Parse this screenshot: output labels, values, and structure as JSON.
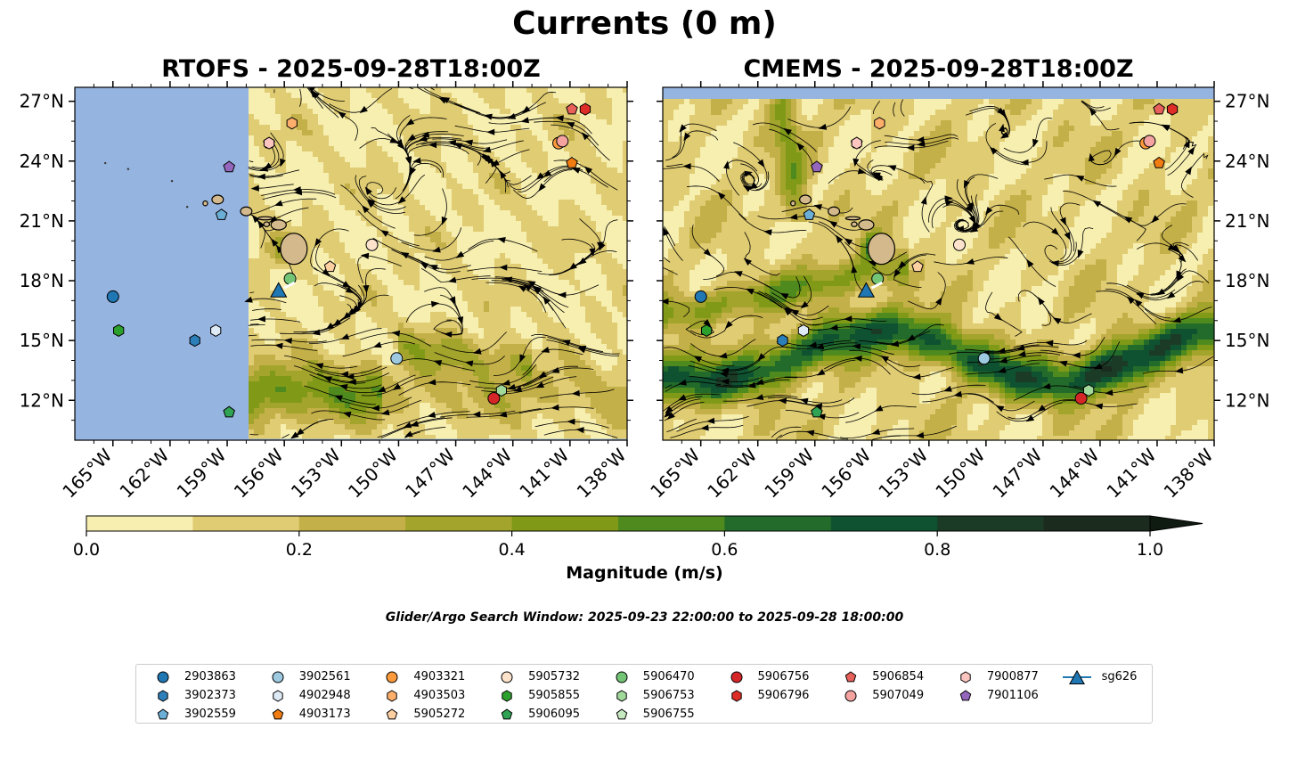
{
  "figure": {
    "title": "Currents (0 m)",
    "window_text": "Glider/Argo Search Window: 2025-09-23 22:00:00 to 2025-09-28 18:00:00"
  },
  "chart_data": [
    {
      "type": "map",
      "title": "RTOFS - 2025-09-28T18:00Z",
      "xlabel": "",
      "ylabel": "",
      "xlim": [
        -167,
        -138
      ],
      "ylim": [
        10,
        27.7
      ],
      "lon_ticks": [
        -165,
        -162,
        -159,
        -156,
        -153,
        -150,
        -147,
        -144,
        -141,
        -138
      ],
      "lon_tick_labels": [
        "165°W",
        "162°W",
        "159°W",
        "156°W",
        "153°W",
        "150°W",
        "147°W",
        "144°W",
        "141°W",
        "138°W"
      ],
      "lat_ticks": [
        12,
        15,
        18,
        21,
        24,
        27
      ],
      "lat_tick_labels": [
        "12°N",
        "15°N",
        "18°N",
        "21°N",
        "24°N",
        "27°N"
      ],
      "model_west_limit_lon": -157.9,
      "model_south_limit_lat": 10.1
    },
    {
      "type": "map",
      "title": "CMEMS - 2025-09-28T18:00Z",
      "xlabel": "",
      "ylabel": "",
      "xlim": [
        -167,
        -138
      ],
      "ylim": [
        10,
        27.7
      ],
      "lon_ticks": [
        -165,
        -162,
        -159,
        -156,
        -153,
        -150,
        -147,
        -144,
        -141,
        -138
      ],
      "lon_tick_labels": [
        "165°W",
        "162°W",
        "159°W",
        "156°W",
        "153°W",
        "150°W",
        "147°W",
        "144°W",
        "141°W",
        "138°W"
      ],
      "lat_ticks": [
        12,
        15,
        18,
        21,
        24,
        27
      ],
      "lat_tick_labels": [
        "12°N",
        "15°N",
        "18°N",
        "21°N",
        "24°N",
        "27°N"
      ],
      "model_north_limit_lat": 27.1
    }
  ],
  "colorbar": {
    "label": "Magnitude (m/s)",
    "min": 0.0,
    "max": 1.0,
    "extend": "max",
    "ticks": [
      0.0,
      0.2,
      0.4,
      0.6,
      0.8,
      1.0
    ],
    "tick_labels": [
      "0.0",
      "0.2",
      "0.4",
      "0.6",
      "0.8",
      "1.0"
    ],
    "colors": [
      "#f7efb0",
      "#e0cc72",
      "#c4b048",
      "#a3a42c",
      "#809a18",
      "#4f8a1e",
      "#226b2a",
      "#0f5231",
      "#1c3b26",
      "#1b2b1e"
    ],
    "extend_color": "#0f1a10"
  },
  "colors": {
    "land": "#d4b98c",
    "ocean_mask": "#96b4e0",
    "streamline": "#000000"
  },
  "hawaii_islands": [
    {
      "name": "Kauai",
      "lon": -159.5,
      "lat": 22.07,
      "rlon": 0.3,
      "rlat": 0.22
    },
    {
      "name": "Niihau",
      "lon": -160.15,
      "lat": 21.88,
      "rlon": 0.12,
      "rlat": 0.12
    },
    {
      "name": "Oahu",
      "lon": -158.0,
      "lat": 21.48,
      "rlon": 0.3,
      "rlat": 0.22
    },
    {
      "name": "Molokai",
      "lon": -157.0,
      "lat": 21.13,
      "rlon": 0.38,
      "rlat": 0.08
    },
    {
      "name": "Lanai",
      "lon": -156.93,
      "lat": 20.83,
      "rlon": 0.15,
      "rlat": 0.12
    },
    {
      "name": "Maui",
      "lon": -156.3,
      "lat": 20.8,
      "rlon": 0.4,
      "rlat": 0.25
    },
    {
      "name": "Hawaii",
      "lon": -155.5,
      "lat": 19.6,
      "rlon": 0.7,
      "rlat": 0.78
    }
  ],
  "platforms": [
    {
      "id": "2903863",
      "marker": "circle",
      "color": "#1f77b4",
      "lon": -165.0,
      "lat": 17.2
    },
    {
      "id": "3902373",
      "marker": "hexagon",
      "color": "#2c7fb8",
      "lon": -160.7,
      "lat": 15.0
    },
    {
      "id": "3902559",
      "marker": "pentagon",
      "color": "#6baed6",
      "lon": -159.3,
      "lat": 21.3
    },
    {
      "id": "3902561",
      "marker": "circle",
      "color": "#9ecae1",
      "lon": -150.1,
      "lat": 14.1
    },
    {
      "id": "4902948",
      "marker": "hexagon",
      "color": "#deebf7",
      "lon": -159.6,
      "lat": 15.5
    },
    {
      "id": "4903173",
      "marker": "pentagon",
      "color": "#f07c12",
      "lon": -140.9,
      "lat": 23.9
    },
    {
      "id": "4903321",
      "marker": "circle",
      "color": "#fd9a3c",
      "lon": -141.6,
      "lat": 24.9
    },
    {
      "id": "4903503",
      "marker": "hexagon",
      "color": "#fdae6b",
      "lon": -155.6,
      "lat": 25.9
    },
    {
      "id": "5905272",
      "marker": "pentagon",
      "color": "#fdd0a2",
      "lon": -153.6,
      "lat": 18.7
    },
    {
      "id": "5905732",
      "marker": "circle",
      "color": "#fde3cc",
      "lon": -151.4,
      "lat": 19.8
    },
    {
      "id": "5905855",
      "marker": "hexagon",
      "color": "#2ca02c",
      "lon": -164.7,
      "lat": 15.5
    },
    {
      "id": "5906095",
      "marker": "pentagon",
      "color": "#31a354",
      "lon": -158.9,
      "lat": 11.4
    },
    {
      "id": "5906470",
      "marker": "circle",
      "color": "#74c476",
      "lon": -155.7,
      "lat": 18.1
    },
    {
      "id": "5906753",
      "marker": "hexagon",
      "color": "#a1d99b",
      "lon": -144.6,
      "lat": 12.5
    },
    {
      "id": "5906755",
      "marker": "pentagon",
      "color": "#c7e9c0",
      "lon": -156.8,
      "lat": 24.9
    },
    {
      "id": "5906756",
      "marker": "circle",
      "color": "#d62728",
      "lon": -145.0,
      "lat": 12.1
    },
    {
      "id": "5906796",
      "marker": "hexagon",
      "color": "#de2d26",
      "lon": -140.2,
      "lat": 26.6
    },
    {
      "id": "5906854",
      "marker": "pentagon",
      "color": "#e8605a",
      "lon": -140.9,
      "lat": 26.6
    },
    {
      "id": "5907049",
      "marker": "circle",
      "color": "#f4a3a0",
      "lon": -141.4,
      "lat": 25.0
    },
    {
      "id": "7900877",
      "marker": "hexagon",
      "color": "#fcc5c0",
      "lon": -156.8,
      "lat": 24.9
    },
    {
      "id": "7901106",
      "marker": "pentagon",
      "color": "#9467bd",
      "lon": -158.9,
      "lat": 23.7
    },
    {
      "id": "sg626",
      "marker": "triangle",
      "color": "#1f77b4",
      "lon": -156.3,
      "lat": 17.5
    }
  ],
  "legend_entries": [
    {
      "id": "2903863",
      "marker": "circle",
      "color": "#1f77b4"
    },
    {
      "id": "3902373",
      "marker": "hexagon",
      "color": "#2c7fb8"
    },
    {
      "id": "3902559",
      "marker": "pentagon",
      "color": "#6baed6"
    },
    {
      "id": "3902561",
      "marker": "circle",
      "color": "#9ecae1"
    },
    {
      "id": "4902948",
      "marker": "hexagon",
      "color": "#deebf7"
    },
    {
      "id": "4903173",
      "marker": "pentagon",
      "color": "#f07c12"
    },
    {
      "id": "4903321",
      "marker": "circle",
      "color": "#fd9a3c"
    },
    {
      "id": "4903503",
      "marker": "hexagon",
      "color": "#fdae6b"
    },
    {
      "id": "5905272",
      "marker": "pentagon",
      "color": "#fdd0a2"
    },
    {
      "id": "5905732",
      "marker": "circle",
      "color": "#fde3cc"
    },
    {
      "id": "5905855",
      "marker": "hexagon",
      "color": "#2ca02c"
    },
    {
      "id": "5906095",
      "marker": "pentagon",
      "color": "#31a354"
    },
    {
      "id": "5906470",
      "marker": "circle",
      "color": "#74c476"
    },
    {
      "id": "5906753",
      "marker": "hexagon",
      "color": "#a1d99b"
    },
    {
      "id": "5906755",
      "marker": "pentagon",
      "color": "#c7e9c0"
    },
    {
      "id": "5906756",
      "marker": "circle",
      "color": "#d62728"
    },
    {
      "id": "5906796",
      "marker": "hexagon",
      "color": "#de2d26"
    },
    {
      "id": "5906854",
      "marker": "pentagon",
      "color": "#e8605a"
    },
    {
      "id": "5907049",
      "marker": "circle",
      "color": "#f4a3a0"
    },
    {
      "id": "7900877",
      "marker": "hexagon",
      "color": "#fcc5c0"
    },
    {
      "id": "7901106",
      "marker": "pentagon",
      "color": "#9467bd"
    },
    {
      "id": "sg626",
      "marker": "triangle-line",
      "color": "#1f77b4"
    }
  ]
}
